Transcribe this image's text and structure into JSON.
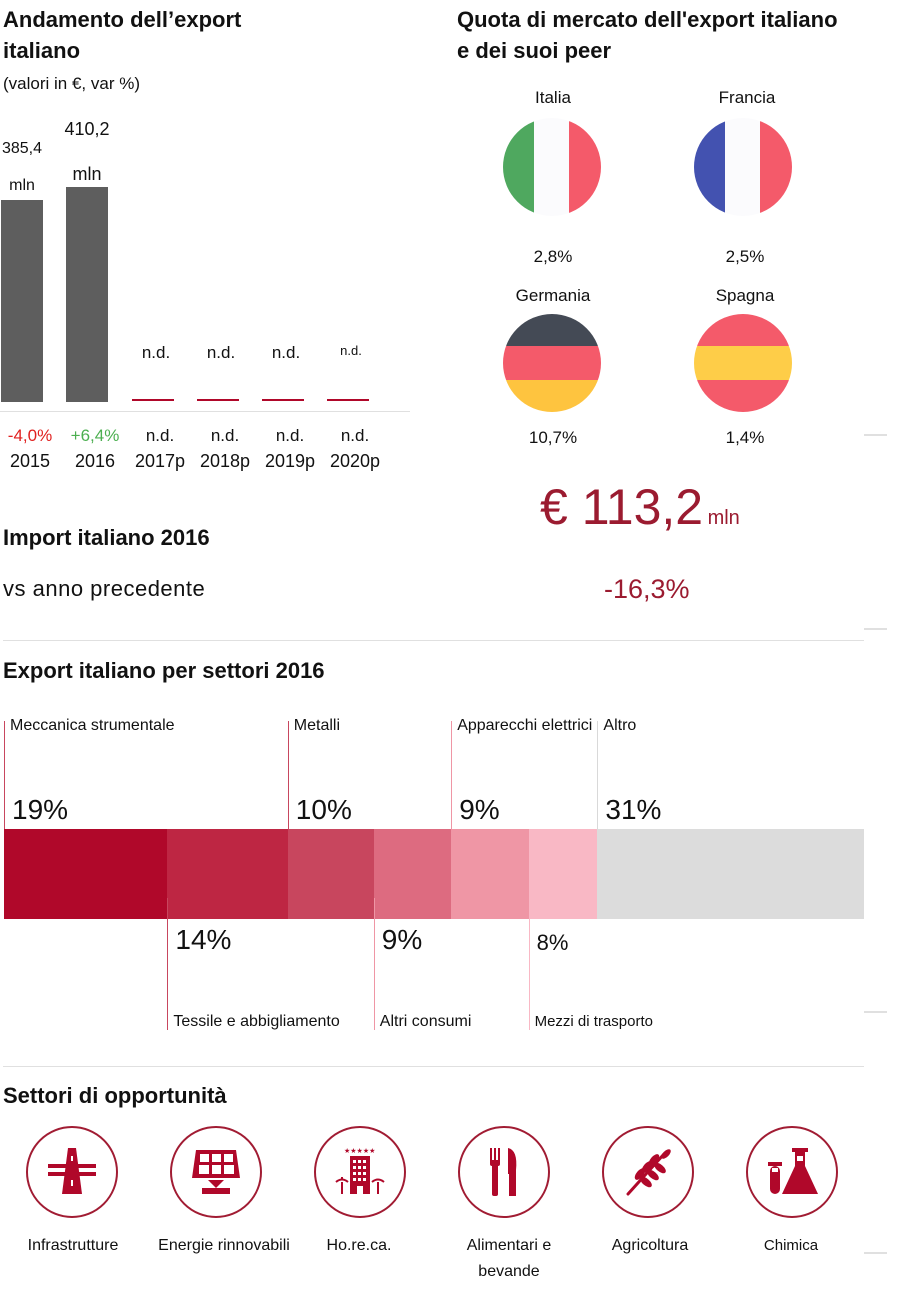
{
  "export_trend": {
    "title_line1": "Andamento dell’export",
    "title_line2": "italiano",
    "subtitle": "(valori in €, var %)",
    "bars": [
      {
        "year": "2015",
        "value": 385.4,
        "value_label": "385,4",
        "unit": "mln",
        "change": "-4,0%",
        "change_color": "#e0201f"
      },
      {
        "year": "2016",
        "value": 410.2,
        "value_label": "410,2",
        "unit": "mln",
        "change": "+6,4%",
        "change_color": "#4caf50"
      },
      {
        "year": "2017p",
        "value": null,
        "value_label": "n.d.",
        "change": "n.d."
      },
      {
        "year": "2018p",
        "value": null,
        "value_label": "n.d.",
        "change": "n.d."
      },
      {
        "year": "2019p",
        "value": null,
        "value_label": "n.d.",
        "change": "n.d."
      },
      {
        "year": "2020p",
        "value": null,
        "value_label": "n.d.",
        "change": "n.d."
      }
    ]
  },
  "market_share": {
    "title_line1": "Quota di mercato dell'export italiano",
    "title_line2": "e dei suoi peer",
    "countries": [
      {
        "name": "Italia",
        "share": "2,8%",
        "flag": "italy-flag"
      },
      {
        "name": "Francia",
        "share": "2,5%",
        "flag": "france-flag"
      },
      {
        "name": "Germania",
        "share": "10,7%",
        "flag": "germany-flag"
      },
      {
        "name": "Spagna",
        "share": "1,4%",
        "flag": "spain-flag"
      }
    ]
  },
  "import": {
    "title": "Import italiano 2016",
    "subtitle": "vs anno precedente",
    "amount": "€ 113,2",
    "unit": "mln",
    "change": "-16,3%",
    "accent": "#9b1b30"
  },
  "sectors": {
    "title": "Export italiano per settori 2016",
    "items": [
      {
        "name": "Meccanica strumentale",
        "pct": "19%",
        "color": "#b0082a",
        "position": "top"
      },
      {
        "name": "Tessile e abbigliamento",
        "pct": "14%",
        "color": "#be2643",
        "position": "bottom"
      },
      {
        "name": "Metalli",
        "pct": "10%",
        "color": "#c8465e",
        "position": "top"
      },
      {
        "name": "Altri consumi",
        "pct": "9%",
        "color": "#dd6b80",
        "position": "bottom"
      },
      {
        "name": "Apparecchi elettrici",
        "pct": "9%",
        "color": "#ef96a5",
        "position": "top"
      },
      {
        "name": "Mezzi di trasporto",
        "pct": "8%",
        "color": "#f9b8c5",
        "position": "bottom"
      },
      {
        "name": "Altro",
        "pct": "31%",
        "color": "#dcdcdc",
        "position": "top"
      }
    ]
  },
  "opportunities": {
    "title": "Settori di opportunità",
    "items": [
      {
        "label": "Infrastrutture",
        "icon": "highway-icon"
      },
      {
        "label": "Energie rinnovabili",
        "icon": "solar-panel-icon"
      },
      {
        "label": "Ho.re.ca.",
        "icon": "hotel-icon"
      },
      {
        "label": "Alimentari e bevande",
        "icon": "fork-knife-icon"
      },
      {
        "label": "Agricoltura",
        "icon": "wheat-icon"
      },
      {
        "label": "Chimica",
        "icon": "flask-icon"
      }
    ],
    "icon_color": "#b0082a"
  },
  "chart_data": [
    {
      "type": "bar",
      "title": "Andamento dell’export italiano",
      "subtitle": "(valori in €, var %)",
      "categories": [
        "2015",
        "2016",
        "2017p",
        "2018p",
        "2019p",
        "2020p"
      ],
      "values": [
        385.4,
        410.2,
        null,
        null,
        null,
        null
      ],
      "value_labels": [
        "385,4 mln",
        "410,2 mln",
        "n.d.",
        "n.d.",
        "n.d.",
        "n.d."
      ],
      "changes": [
        "-4,0%",
        "+6,4%",
        "n.d.",
        "n.d.",
        "n.d.",
        "n.d."
      ],
      "unit": "mln €",
      "xlabel": "",
      "ylabel": ""
    },
    {
      "type": "bar",
      "title": "Export italiano per settori 2016",
      "orientation": "horizontal-stacked",
      "categories": [
        "Meccanica strumentale",
        "Tessile e abbigliamento",
        "Metalli",
        "Altri consumi",
        "Apparecchi elettrici",
        "Mezzi di trasporto",
        "Altro"
      ],
      "values": [
        19,
        14,
        10,
        9,
        9,
        8,
        31
      ],
      "unit": "%"
    }
  ]
}
